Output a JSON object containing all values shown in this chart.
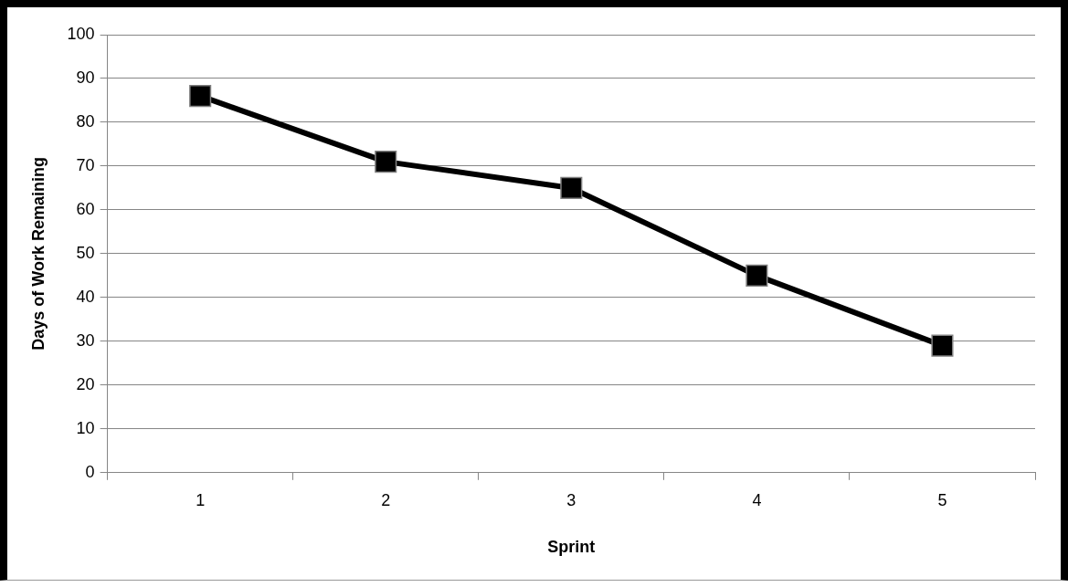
{
  "chart_data": {
    "type": "line",
    "xlabel": "Sprint",
    "ylabel": "Days of Work Remaining",
    "categories": [
      "1",
      "2",
      "3",
      "4",
      "5"
    ],
    "series": [
      {
        "color": "#000000",
        "values": [
          86,
          71,
          65,
          45,
          29
        ]
      }
    ],
    "ylim": [
      0,
      100
    ],
    "yticks": [
      0,
      10,
      20,
      30,
      40,
      50,
      60,
      70,
      80,
      90,
      100
    ],
    "grid": "y",
    "legend": false,
    "marker": "square",
    "line_style": "solid"
  }
}
